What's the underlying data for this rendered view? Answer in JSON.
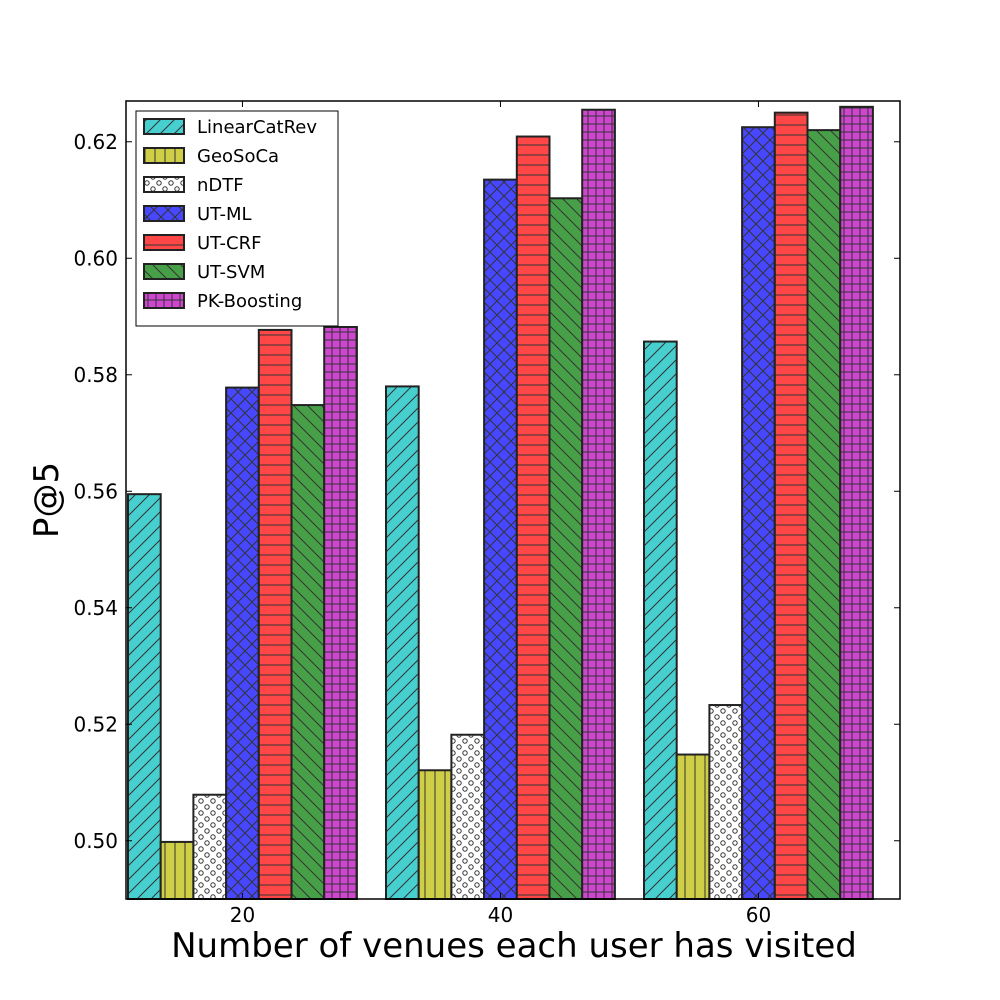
{
  "chart_data": {
    "type": "bar",
    "title": "",
    "xlabel": "Number of venues each user has visited",
    "ylabel": "P@5",
    "categories": [
      "20",
      "40",
      "60"
    ],
    "ylim": [
      0.49,
      0.627
    ],
    "yticks": [
      0.5,
      0.52,
      0.54,
      0.56,
      0.58,
      0.6,
      0.62
    ],
    "ytick_labels": [
      "0.50",
      "0.52",
      "0.54",
      "0.56",
      "0.58",
      "0.60",
      "0.62"
    ],
    "legend_position": "top-left",
    "series": [
      {
        "name": "LinearCatRev",
        "values": [
          0.5595,
          0.578,
          0.5857
        ],
        "color": "#47cfcf",
        "hatch": "diag-right"
      },
      {
        "name": "GeoSoCa",
        "values": [
          0.4998,
          0.5121,
          0.5148
        ],
        "color": "#cfcf47",
        "hatch": "vertical"
      },
      {
        "name": "nDTF",
        "values": [
          0.5079,
          0.5182,
          0.5233
        ],
        "color": "#ffffff",
        "hatch": "dots"
      },
      {
        "name": "UT-ML",
        "values": [
          0.5778,
          0.6135,
          0.6225
        ],
        "color": "#4747ff",
        "hatch": "cross-diag"
      },
      {
        "name": "UT-CRF",
        "values": [
          0.5877,
          0.6209,
          0.625
        ],
        "color": "#ff4747",
        "hatch": "horizontal"
      },
      {
        "name": "UT-SVM",
        "values": [
          0.5748,
          0.6103,
          0.622
        ],
        "color": "#47a047",
        "hatch": "diag-left"
      },
      {
        "name": "PK-Boosting",
        "values": [
          0.5882,
          0.6255,
          0.626
        ],
        "color": "#cf47cf",
        "hatch": "grid"
      }
    ]
  }
}
